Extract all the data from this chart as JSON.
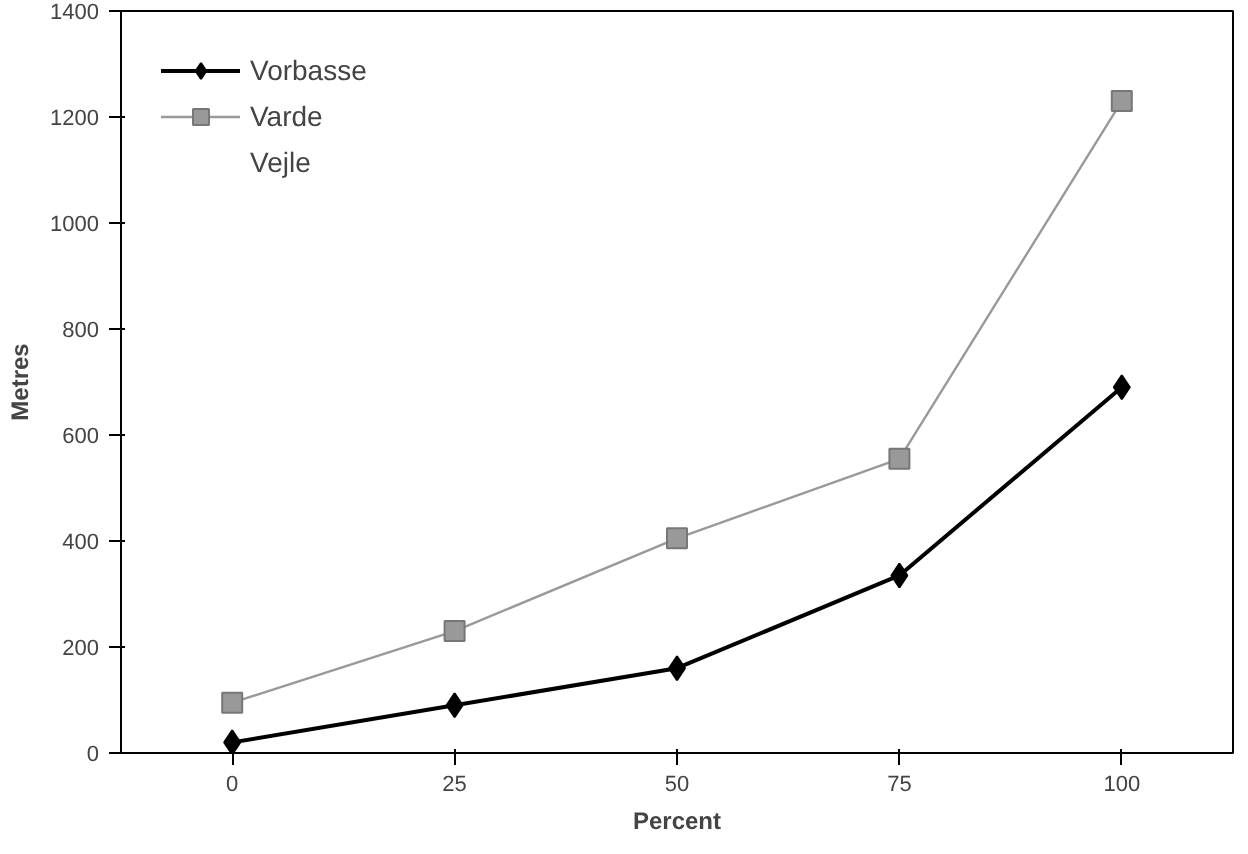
{
  "chart_data": {
    "type": "line",
    "xlabel": "Percent",
    "ylabel": "Metres",
    "categories": [
      "0",
      "25",
      "50",
      "75",
      "100"
    ],
    "series": [
      {
        "name": "Vorbasse",
        "color": "#000000",
        "marker": "diamond",
        "values": [
          20,
          90,
          160,
          335,
          690
        ]
      },
      {
        "name": "Varde",
        "color": "#999999",
        "marker": "square",
        "values": [
          95,
          230,
          405,
          555,
          1230
        ]
      },
      {
        "name": "Vejle",
        "values": [
          null,
          null,
          null,
          null,
          null
        ]
      }
    ],
    "ylim": [
      0,
      1400
    ],
    "yticks": [
      0,
      200,
      400,
      600,
      800,
      1000,
      1200,
      1400
    ],
    "grid": false,
    "legend": "top left"
  }
}
